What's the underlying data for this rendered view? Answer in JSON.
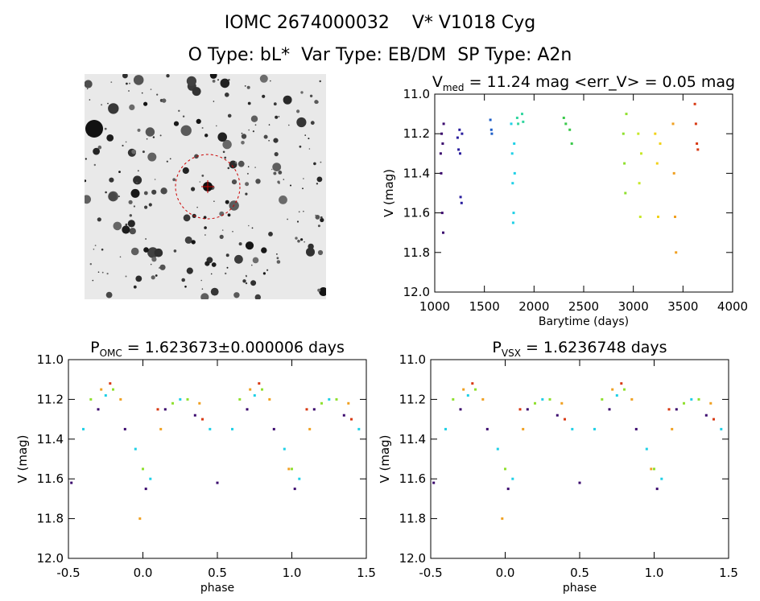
{
  "header": {
    "title_line1": "IOMC 2674000032    V* V1018 Cyg",
    "title_line2": "O Type: bL*  Var Type: EB/DM  SP Type: A2n"
  },
  "chart_data": [
    {
      "type": "scatter",
      "title_parts": [
        "V",
        "med",
        " = 11.24 mag <err_V> = 0.05 mag"
      ],
      "xlabel": "Barytime (days)",
      "ylabel": "V (mag)",
      "xlim": [
        1000,
        4000
      ],
      "ylim": [
        12.0,
        11.0
      ],
      "y_reversed": true,
      "xticks": [
        "1000",
        "1500",
        "2000",
        "2500",
        "3000",
        "3500",
        "4000"
      ],
      "yticks": [
        "11.0",
        "11.2",
        "11.4",
        "11.6",
        "11.8",
        "12.0"
      ],
      "series": [
        {
          "color": "#3b0a6e",
          "points": [
            [
              1060,
              11.3
            ],
            [
              1065,
              11.4
            ],
            [
              1070,
              11.2
            ],
            [
              1075,
              11.6
            ],
            [
              1080,
              11.25
            ],
            [
              1085,
              11.7
            ],
            [
              1090,
              11.15
            ]
          ]
        },
        {
          "color": "#2a1e9e",
          "points": [
            [
              1230,
              11.22
            ],
            [
              1240,
              11.28
            ],
            [
              1250,
              11.18
            ],
            [
              1255,
              11.3
            ],
            [
              1260,
              11.52
            ],
            [
              1270,
              11.55
            ],
            [
              1275,
              11.2
            ]
          ]
        },
        {
          "color": "#1e5fc8",
          "points": [
            [
              1560,
              11.13
            ],
            [
              1570,
              11.18
            ],
            [
              1575,
              11.2
            ]
          ]
        },
        {
          "color": "#1fd0e6",
          "points": [
            [
              1770,
              11.15
            ],
            [
              1780,
              11.3
            ],
            [
              1785,
              11.45
            ],
            [
              1790,
              11.65
            ],
            [
              1795,
              11.6
            ],
            [
              1800,
              11.25
            ],
            [
              1805,
              11.4
            ]
          ]
        },
        {
          "color": "#33d6a0",
          "points": [
            [
              1830,
              11.12
            ],
            [
              1840,
              11.15
            ],
            [
              1880,
              11.1
            ],
            [
              1890,
              11.14
            ]
          ]
        },
        {
          "color": "#3ac94a",
          "points": [
            [
              2300,
              11.12
            ],
            [
              2320,
              11.15
            ],
            [
              2360,
              11.18
            ],
            [
              2380,
              11.25
            ]
          ]
        },
        {
          "color": "#8fe02e",
          "points": [
            [
              2900,
              11.2
            ],
            [
              2910,
              11.35
            ],
            [
              2920,
              11.5
            ],
            [
              2930,
              11.1
            ]
          ]
        },
        {
          "color": "#c8e82a",
          "points": [
            [
              3050,
              11.2
            ],
            [
              3060,
              11.45
            ],
            [
              3070,
              11.62
            ],
            [
              3080,
              11.3
            ]
          ]
        },
        {
          "color": "#f2d21a",
          "points": [
            [
              3220,
              11.2
            ],
            [
              3240,
              11.35
            ],
            [
              3250,
              11.62
            ],
            [
              3270,
              11.25
            ]
          ]
        },
        {
          "color": "#f0a020",
          "points": [
            [
              3400,
              11.15
            ],
            [
              3410,
              11.4
            ],
            [
              3420,
              11.62
            ],
            [
              3430,
              11.8
            ]
          ]
        },
        {
          "color": "#d83a14",
          "points": [
            [
              3620,
              11.05
            ],
            [
              3630,
              11.15
            ],
            [
              3640,
              11.25
            ],
            [
              3650,
              11.28
            ]
          ]
        }
      ]
    },
    {
      "type": "scatter",
      "title_parts": [
        "P",
        "OMC",
        " = 1.623673±0.000006 days"
      ],
      "xlabel": "phase",
      "ylabel": "V (mag)",
      "xlim": [
        -0.5,
        1.5
      ],
      "ylim": [
        12.0,
        11.0
      ],
      "y_reversed": true,
      "xticks": [
        "-0.5",
        "0.0",
        "0.5",
        "1.0",
        "1.5"
      ],
      "yticks": [
        "11.0",
        "11.2",
        "11.4",
        "11.6",
        "11.8",
        "12.0"
      ],
      "series": [
        {
          "color": "#3b0a6e",
          "points": [
            [
              -0.48,
              11.62
            ],
            [
              -0.3,
              11.25
            ],
            [
              -0.12,
              11.35
            ],
            [
              0.02,
              11.65
            ],
            [
              0.15,
              11.25
            ],
            [
              0.35,
              11.28
            ],
            [
              0.5,
              11.62
            ],
            [
              0.7,
              11.25
            ],
            [
              0.88,
              11.35
            ],
            [
              1.02,
              11.65
            ],
            [
              1.15,
              11.25
            ],
            [
              1.35,
              11.28
            ]
          ]
        },
        {
          "color": "#1fd0e6",
          "points": [
            [
              -0.4,
              11.35
            ],
            [
              -0.25,
              11.18
            ],
            [
              -0.05,
              11.45
            ],
            [
              0.05,
              11.6
            ],
            [
              0.25,
              11.2
            ],
            [
              0.45,
              11.35
            ],
            [
              0.6,
              11.35
            ],
            [
              0.75,
              11.18
            ],
            [
              0.95,
              11.45
            ],
            [
              1.05,
              11.6
            ],
            [
              1.25,
              11.2
            ],
            [
              1.45,
              11.35
            ]
          ]
        },
        {
          "color": "#8fe02e",
          "points": [
            [
              -0.35,
              11.2
            ],
            [
              -0.2,
              11.15
            ],
            [
              0.0,
              11.55
            ],
            [
              0.2,
              11.22
            ],
            [
              0.3,
              11.2
            ],
            [
              0.65,
              11.2
            ],
            [
              0.8,
              11.15
            ],
            [
              1.0,
              11.55
            ],
            [
              1.2,
              11.22
            ],
            [
              1.3,
              11.2
            ]
          ]
        },
        {
          "color": "#f0a020",
          "points": [
            [
              -0.28,
              11.15
            ],
            [
              -0.15,
              11.2
            ],
            [
              -0.02,
              11.8
            ],
            [
              0.12,
              11.35
            ],
            [
              0.38,
              11.22
            ],
            [
              0.72,
              11.15
            ],
            [
              0.85,
              11.2
            ],
            [
              0.98,
              11.55
            ],
            [
              1.12,
              11.35
            ],
            [
              1.38,
              11.22
            ]
          ]
        },
        {
          "color": "#d83a14",
          "points": [
            [
              -0.22,
              11.12
            ],
            [
              0.1,
              11.25
            ],
            [
              0.4,
              11.3
            ],
            [
              0.78,
              11.12
            ],
            [
              1.1,
              11.25
            ],
            [
              1.4,
              11.3
            ]
          ]
        }
      ]
    },
    {
      "type": "scatter",
      "title_parts": [
        "P",
        "VSX",
        " = 1.6236748 days"
      ],
      "xlabel": "phase",
      "ylabel": "V (mag)",
      "xlim": [
        -0.5,
        1.5
      ],
      "ylim": [
        12.0,
        11.0
      ],
      "y_reversed": true,
      "xticks": [
        "-0.5",
        "0.0",
        "0.5",
        "1.0",
        "1.5"
      ],
      "yticks": [
        "11.0",
        "11.2",
        "11.4",
        "11.6",
        "11.8",
        "12.0"
      ],
      "series": [
        {
          "color": "#3b0a6e",
          "points": [
            [
              -0.48,
              11.62
            ],
            [
              -0.3,
              11.25
            ],
            [
              -0.12,
              11.35
            ],
            [
              0.02,
              11.65
            ],
            [
              0.15,
              11.25
            ],
            [
              0.35,
              11.28
            ],
            [
              0.5,
              11.62
            ],
            [
              0.7,
              11.25
            ],
            [
              0.88,
              11.35
            ],
            [
              1.02,
              11.65
            ],
            [
              1.15,
              11.25
            ],
            [
              1.35,
              11.28
            ]
          ]
        },
        {
          "color": "#1fd0e6",
          "points": [
            [
              -0.4,
              11.35
            ],
            [
              -0.25,
              11.18
            ],
            [
              -0.05,
              11.45
            ],
            [
              0.05,
              11.6
            ],
            [
              0.25,
              11.2
            ],
            [
              0.45,
              11.35
            ],
            [
              0.6,
              11.35
            ],
            [
              0.75,
              11.18
            ],
            [
              0.95,
              11.45
            ],
            [
              1.05,
              11.6
            ],
            [
              1.25,
              11.2
            ],
            [
              1.45,
              11.35
            ]
          ]
        },
        {
          "color": "#8fe02e",
          "points": [
            [
              -0.35,
              11.2
            ],
            [
              -0.2,
              11.15
            ],
            [
              0.0,
              11.55
            ],
            [
              0.2,
              11.22
            ],
            [
              0.3,
              11.2
            ],
            [
              0.65,
              11.2
            ],
            [
              0.8,
              11.15
            ],
            [
              1.0,
              11.55
            ],
            [
              1.2,
              11.22
            ],
            [
              1.3,
              11.2
            ]
          ]
        },
        {
          "color": "#f0a020",
          "points": [
            [
              -0.28,
              11.15
            ],
            [
              -0.15,
              11.2
            ],
            [
              -0.02,
              11.8
            ],
            [
              0.12,
              11.35
            ],
            [
              0.38,
              11.22
            ],
            [
              0.72,
              11.15
            ],
            [
              0.85,
              11.2
            ],
            [
              0.98,
              11.55
            ],
            [
              1.12,
              11.35
            ],
            [
              1.38,
              11.22
            ]
          ]
        },
        {
          "color": "#d83a14",
          "points": [
            [
              -0.22,
              11.12
            ],
            [
              0.1,
              11.25
            ],
            [
              0.4,
              11.3
            ],
            [
              0.78,
              11.12
            ],
            [
              1.1,
              11.25
            ],
            [
              1.4,
              11.3
            ]
          ]
        }
      ]
    }
  ]
}
